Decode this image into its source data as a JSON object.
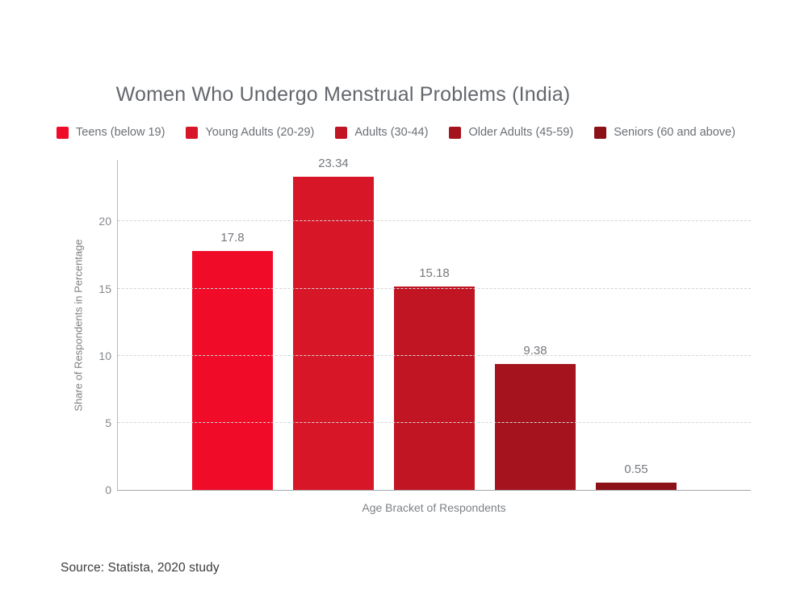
{
  "title": "Women Who Undergo Menstrual Problems (India)",
  "source_note": "Source: Statista, 2020 study",
  "chart_data": {
    "type": "bar",
    "title": "Women Who Undergo Menstrual Problems (India)",
    "categories": [
      "Teens (below 19)",
      "Young Adults (20-29)",
      "Adults (30-44)",
      "Older Adults (45-59)",
      "Seniors (60 and above)"
    ],
    "values": [
      17.8,
      23.34,
      15.18,
      9.38,
      0.55
    ],
    "value_labels": [
      "17.8",
      "23.34",
      "15.18",
      "9.38",
      "0.55"
    ],
    "bar_colors": [
      "#f00b28",
      "#d71728",
      "#c21523",
      "#a5141e",
      "#8c1018"
    ],
    "xlabel": "Age Bracket of Respondents",
    "ylabel": "Share of Respondents in Percentage",
    "yticks": [
      0,
      5,
      10,
      15,
      20
    ],
    "ylim": [
      0,
      24.6
    ],
    "grid": "horizontal-dashed",
    "legend_position": "top"
  },
  "colors": {
    "title_text": "#63676d",
    "legend_text": "#6b6f75",
    "axis_text": "#85888c",
    "value_label_text": "#76797d",
    "gridline": "#d3d4d5",
    "axis_line": "#a3a7aa",
    "source_text": "#3b3b3d",
    "background": "#ffffff"
  }
}
